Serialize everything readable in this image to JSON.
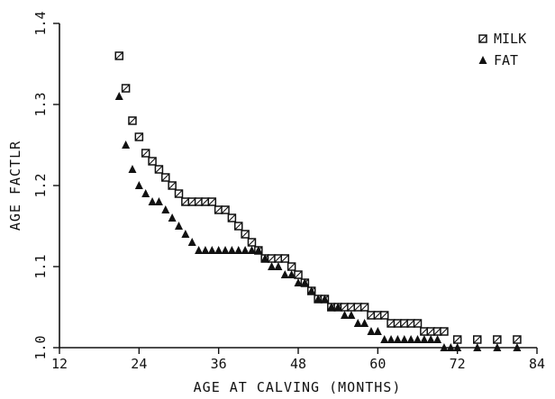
{
  "chart_data": {
    "type": "scatter",
    "title": "",
    "xlabel": "AGE AT CALVING (MONTHS)",
    "ylabel": "AGE FACTLR",
    "xlim": [
      12,
      84
    ],
    "ylim": [
      1.0,
      1.4
    ],
    "xticks": [
      "12",
      "24",
      "36",
      "48",
      "60",
      "72",
      "84"
    ],
    "yticks": [
      "1.0",
      "1.1",
      "1.2",
      "1.3",
      "1.4"
    ],
    "grid": false,
    "legend_position": "top-right",
    "series": [
      {
        "name": "MILK",
        "marker": "square",
        "x": [
          21,
          22,
          23,
          24,
          25,
          26,
          27,
          28,
          29,
          30,
          31,
          32,
          33,
          34,
          35,
          36,
          37,
          38,
          39,
          40,
          41,
          42,
          43,
          44,
          45,
          46,
          47,
          48,
          49,
          50,
          51,
          52,
          53,
          54,
          55,
          56,
          57,
          58,
          59,
          60,
          61,
          62,
          63,
          64,
          65,
          66,
          67,
          68,
          69,
          70,
          72,
          75,
          78,
          81
        ],
        "y": [
          1.36,
          1.32,
          1.28,
          1.26,
          1.24,
          1.23,
          1.22,
          1.21,
          1.2,
          1.19,
          1.18,
          1.18,
          1.18,
          1.18,
          1.18,
          1.17,
          1.17,
          1.16,
          1.15,
          1.14,
          1.13,
          1.12,
          1.11,
          1.11,
          1.11,
          1.11,
          1.1,
          1.09,
          1.08,
          1.07,
          1.06,
          1.06,
          1.05,
          1.05,
          1.05,
          1.05,
          1.05,
          1.05,
          1.04,
          1.04,
          1.04,
          1.03,
          1.03,
          1.03,
          1.03,
          1.03,
          1.02,
          1.02,
          1.02,
          1.02,
          1.01,
          1.01,
          1.01,
          1.01
        ]
      },
      {
        "name": "FAT",
        "marker": "triangle",
        "x": [
          21,
          22,
          23,
          24,
          25,
          26,
          27,
          28,
          29,
          30,
          31,
          32,
          33,
          34,
          35,
          36,
          37,
          38,
          39,
          40,
          41,
          42,
          43,
          44,
          45,
          46,
          47,
          48,
          49,
          50,
          51,
          52,
          53,
          54,
          55,
          56,
          57,
          58,
          59,
          60,
          61,
          62,
          63,
          64,
          65,
          66,
          67,
          68,
          69,
          70,
          71,
          72,
          75,
          78,
          81
        ],
        "y": [
          1.31,
          1.25,
          1.22,
          1.2,
          1.19,
          1.18,
          1.18,
          1.17,
          1.16,
          1.15,
          1.14,
          1.13,
          1.12,
          1.12,
          1.12,
          1.12,
          1.12,
          1.12,
          1.12,
          1.12,
          1.12,
          1.12,
          1.11,
          1.1,
          1.1,
          1.09,
          1.09,
          1.08,
          1.08,
          1.07,
          1.06,
          1.06,
          1.05,
          1.05,
          1.04,
          1.04,
          1.03,
          1.03,
          1.02,
          1.02,
          1.01,
          1.01,
          1.01,
          1.01,
          1.01,
          1.01,
          1.01,
          1.01,
          1.01,
          1.0,
          1.0,
          1.0,
          1.0,
          1.0,
          1.0
        ]
      }
    ]
  },
  "colors": {
    "ink": "#111111",
    "background": "#ffffff"
  }
}
